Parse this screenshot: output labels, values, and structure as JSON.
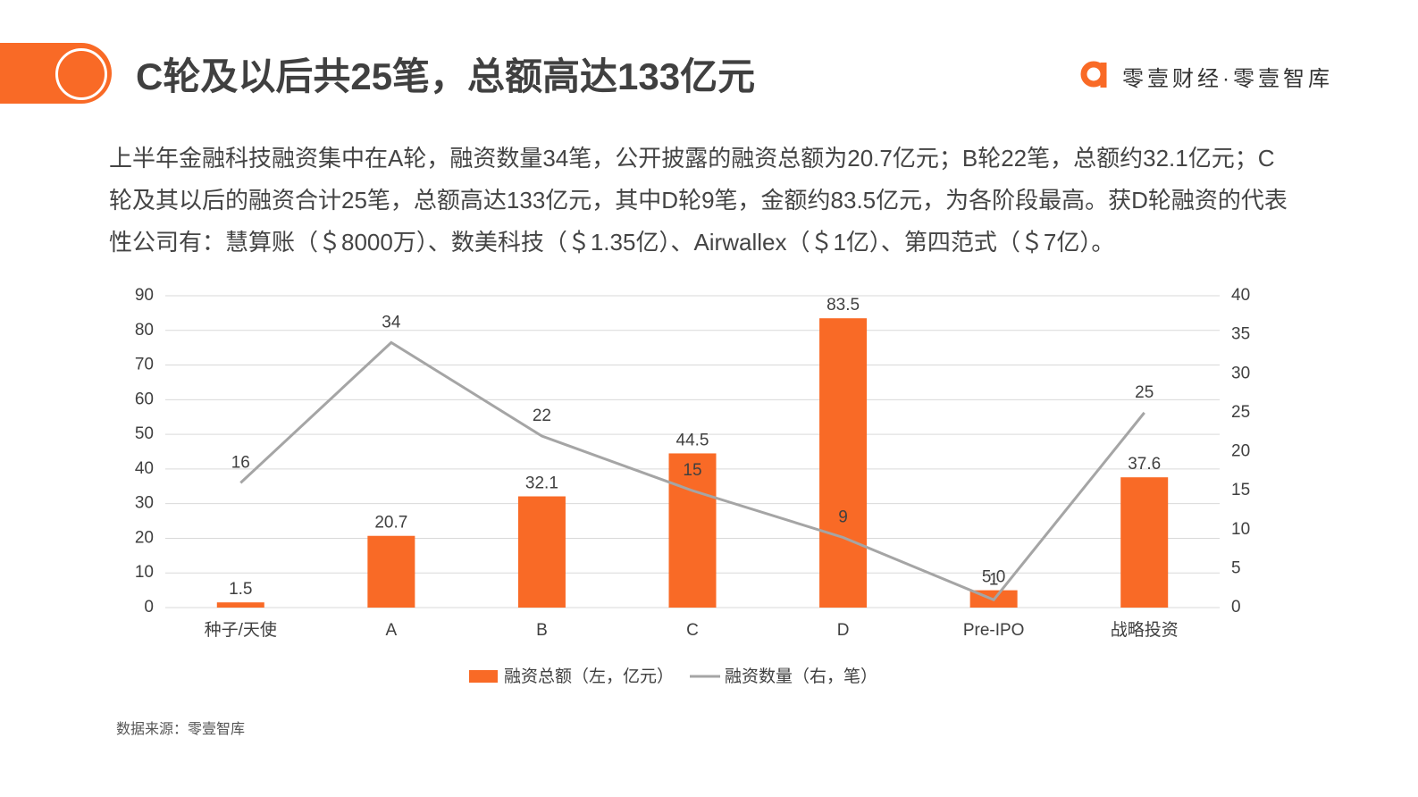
{
  "header": {
    "title": "C轮及以后共25笔，总额高达133亿元",
    "brand": "零壹财经·零壹智库"
  },
  "paragraph": "上半年金融科技融资集中在A轮，融资数量34笔，公开披露的融资总额为20.7亿元；B轮22笔，总额约32.1亿元；C轮及其以后的融资合计25笔，总额高达133亿元，其中D轮9笔，金额约83.5亿元，为各阶段最高。获D轮融资的代表性公司有：慧算账（＄8000万）、数美科技（＄1.35亿）、Airwallex（＄1亿）、第四范式（＄7亿）。",
  "source": "数据来源：零壹智库",
  "chart_data": {
    "type": "bar",
    "categories": [
      "种子/天使",
      "A",
      "B",
      "C",
      "D",
      "Pre-IPO",
      "战略投资"
    ],
    "series": [
      {
        "name": "融资总额（左，亿元）",
        "type": "bar",
        "color": "#f96a26",
        "values": [
          1.5,
          20.7,
          32.1,
          44.5,
          83.5,
          5.0,
          37.6
        ],
        "value_labels": [
          "1.5",
          "20.7",
          "32.1",
          "44.5",
          "83.5",
          "5.0",
          "37.6"
        ]
      },
      {
        "name": "融资数量（右，笔）",
        "type": "line",
        "axis": "y2",
        "color": "#a5a5a5",
        "values": [
          16,
          34,
          22,
          15,
          9,
          1,
          25
        ]
      }
    ],
    "ylim": [
      0,
      90
    ],
    "yticks": [
      0,
      10,
      20,
      30,
      40,
      50,
      60,
      70,
      80,
      90
    ],
    "y2lim": [
      0,
      40
    ],
    "y2ticks": [
      0,
      5,
      10,
      15,
      20,
      25,
      30,
      35,
      40
    ],
    "grid": true,
    "legend": "bottom"
  }
}
